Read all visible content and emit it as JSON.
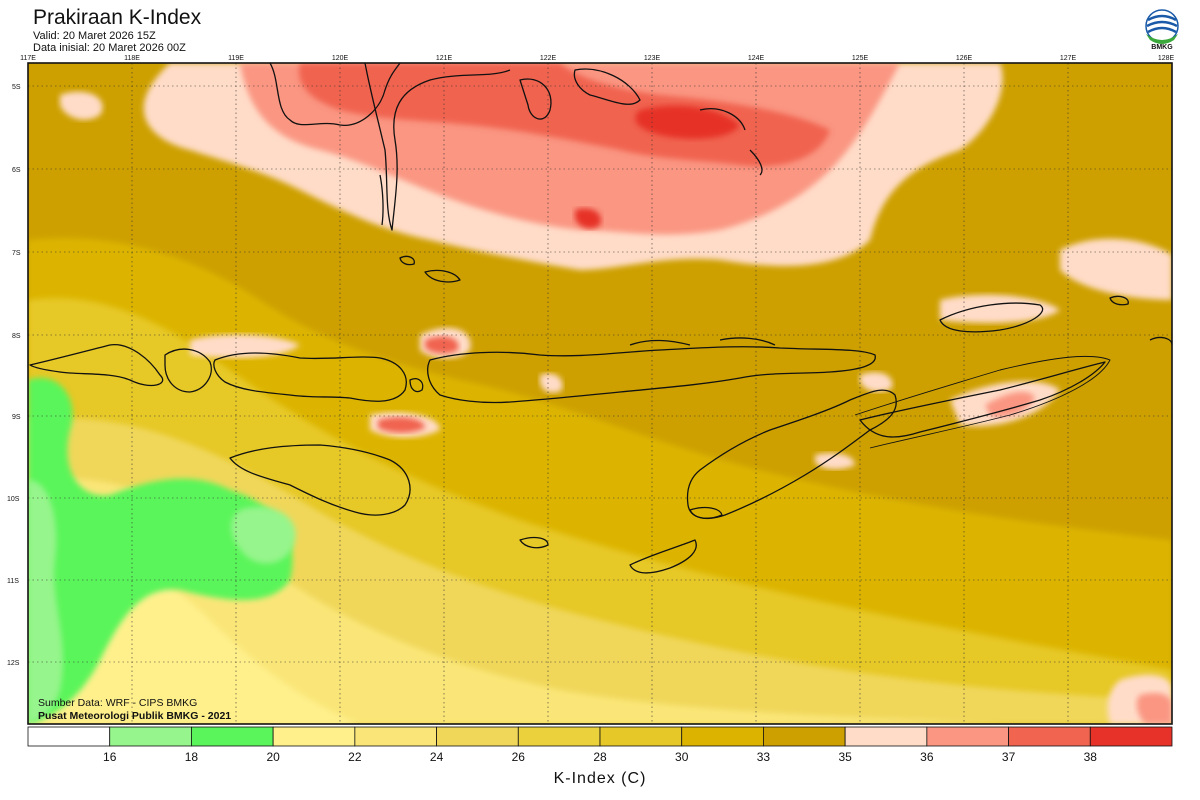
{
  "header": {
    "title": "Prakiraan K-Index",
    "valid": "Valid: 20 Maret 2026 15Z",
    "init": "Data inisial: 20 Maret 2026 00Z",
    "logo_label": "BMKG"
  },
  "map": {
    "lon_labels": [
      "117E",
      "118E",
      "119E",
      "120E",
      "121E",
      "122E",
      "123E",
      "124E",
      "125E",
      "126E",
      "127E",
      "128E"
    ],
    "lat_labels": [
      "5S",
      "6S",
      "7S",
      "8S",
      "9S",
      "10S",
      "11S",
      "12S"
    ],
    "colors": {
      "green_light": "#96f58c",
      "green": "#5af55a",
      "yellow_pale": "#fff08c",
      "yellow_1": "#fae678",
      "yellow_2": "#f0d75a",
      "yellow_3": "#e6c828",
      "gold": "#dcb400",
      "gold_dark": "#cda000",
      "pink_pale": "#ffdcc8",
      "salmon": "#fa9682",
      "red_1": "#f06450",
      "red_2": "#e63228",
      "coast": "#111111"
    }
  },
  "footer": {
    "source": "Sumber Data: WRF - CIPS BMKG",
    "credit": "Pusat Meteorologi Publik BMKG - 2021"
  },
  "colorbar": {
    "ticks": [
      "16",
      "18",
      "20",
      "22",
      "24",
      "26",
      "28",
      "30",
      "33",
      "35",
      "36",
      "37",
      "38"
    ],
    "colors": [
      "#ffffff",
      "#96f58c",
      "#5af55a",
      "#fff08c",
      "#fae678",
      "#f0d75a",
      "#ebd23c",
      "#e6c828",
      "#dcb400",
      "#cda000",
      "#ffdcc8",
      "#fa9682",
      "#f06450",
      "#e63228"
    ],
    "title": "K-Index (C)"
  }
}
